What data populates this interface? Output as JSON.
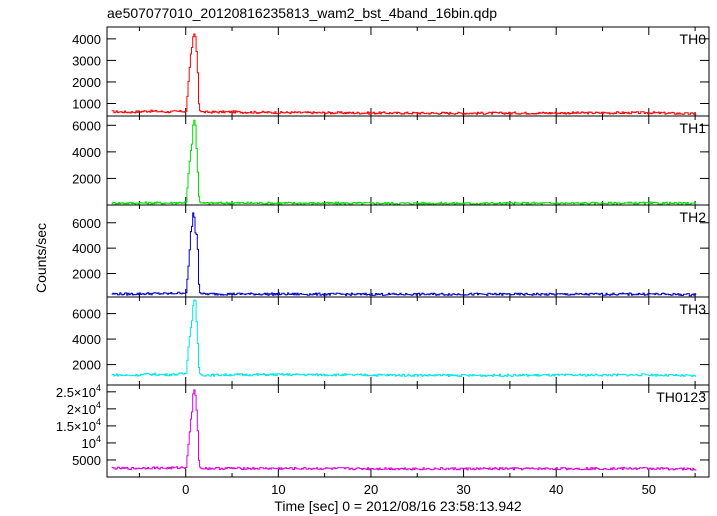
{
  "chart_data": {
    "type": "line",
    "title": "ae507077010_20120816235813_wam2_bst_4band_16bin.qdp",
    "xlabel": "Time [sec] 0 = 2012/08/16 23:58:13.942",
    "ylabel": "Counts/sec",
    "xlim": [
      -8.5,
      56.5
    ],
    "x_ticks": [
      0,
      10,
      20,
      30,
      40,
      50
    ],
    "x_tick_labels": [
      "0",
      "10",
      "20",
      "30",
      "40",
      "50"
    ],
    "panels": [
      {
        "name": "TH0",
        "color": "#ff0000",
        "ylim": [
          420,
          4550
        ],
        "y_ticks": [
          1000,
          2000,
          3000,
          4000
        ],
        "y_tick_labels": [
          "1000",
          "2000",
          "3000",
          "4000"
        ],
        "baseline": 620,
        "series": {
          "x": [
            -8,
            -6,
            -4,
            -2,
            0,
            0.3,
            0.5,
            0.6,
            0.8,
            1.0,
            1.2,
            1.4,
            1.6,
            2,
            5,
            10,
            20,
            30,
            40,
            50,
            55
          ],
          "y": [
            620,
            600,
            650,
            610,
            640,
            2300,
            3300,
            3500,
            4300,
            4100,
            3000,
            700,
            620,
            600,
            610,
            580,
            560,
            550,
            560,
            570,
            520
          ]
        }
      },
      {
        "name": "TH1",
        "color": "#00dd00",
        "ylim": [
          0,
          6700
        ],
        "y_ticks": [
          2000,
          4000,
          6000
        ],
        "y_tick_labels": [
          "2000",
          "4000",
          "6000"
        ],
        "baseline": 150,
        "series": {
          "x": [
            -8,
            -6,
            -4,
            -2,
            0,
            0.3,
            0.5,
            0.6,
            0.8,
            1.0,
            1.2,
            1.4,
            1.6,
            2,
            5,
            10,
            20,
            30,
            40,
            50,
            55
          ],
          "y": [
            150,
            140,
            160,
            150,
            200,
            2800,
            4100,
            4300,
            6600,
            6000,
            3200,
            300,
            150,
            140,
            150,
            140,
            130,
            120,
            130,
            140,
            110
          ]
        }
      },
      {
        "name": "TH2",
        "color": "#0000cc",
        "ylim": [
          150,
          7400
        ],
        "y_ticks": [
          2000,
          4000,
          6000
        ],
        "y_tick_labels": [
          "2000",
          "4000",
          "6000"
        ],
        "baseline": 400,
        "series": {
          "x": [
            -8,
            -6,
            -4,
            -2,
            0,
            0.3,
            0.5,
            0.6,
            0.8,
            1.0,
            1.2,
            1.4,
            1.6,
            2,
            5,
            10,
            20,
            30,
            40,
            50,
            55
          ],
          "y": [
            400,
            380,
            420,
            410,
            500,
            3000,
            5300,
            5500,
            7200,
            5200,
            5000,
            600,
            400,
            380,
            390,
            380,
            360,
            370,
            360,
            380,
            330
          ]
        }
      },
      {
        "name": "TH3",
        "color": "#00e5e5",
        "ylim": [
          400,
          7300
        ],
        "y_ticks": [
          2000,
          4000,
          6000
        ],
        "y_tick_labels": [
          "2000",
          "4000",
          "6000"
        ],
        "baseline": 1200,
        "series": {
          "x": [
            -8,
            -6,
            -4,
            -2,
            0,
            0.3,
            0.5,
            0.6,
            0.8,
            1.0,
            1.2,
            1.4,
            1.6,
            2,
            5,
            10,
            20,
            30,
            40,
            50,
            55
          ],
          "y": [
            1200,
            1150,
            1250,
            1200,
            1300,
            3800,
            4900,
            5200,
            7100,
            7000,
            4400,
            1400,
            1200,
            1180,
            1200,
            1220,
            1180,
            1150,
            1170,
            1200,
            1100
          ]
        }
      },
      {
        "name": "TH0123",
        "color": "#dd00dd",
        "ylim": [
          0,
          27000
        ],
        "y_ticks": [
          5000,
          10000,
          15000,
          20000,
          25000
        ],
        "y_tick_labels": [
          "5000",
          "10^4",
          "1.5×10^4",
          "2×10^4",
          "2.5×10^4"
        ],
        "baseline": 2600,
        "series": {
          "x": [
            -8,
            -6,
            -4,
            -2,
            0,
            0.3,
            0.5,
            0.6,
            0.8,
            1.0,
            1.2,
            1.4,
            1.6,
            2,
            5,
            10,
            20,
            30,
            40,
            50,
            55
          ],
          "y": [
            2600,
            2500,
            2700,
            2600,
            2800,
            11000,
            17000,
            18000,
            26500,
            24000,
            17000,
            3200,
            2600,
            2500,
            2550,
            2500,
            2450,
            2400,
            2450,
            2500,
            2300
          ]
        }
      }
    ]
  }
}
